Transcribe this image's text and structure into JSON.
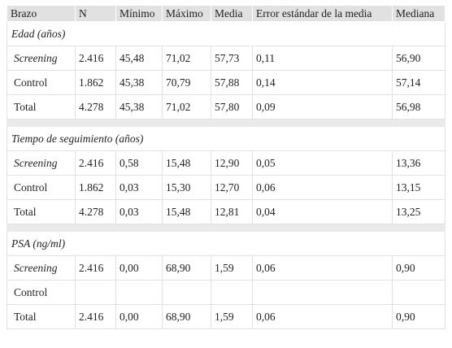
{
  "headers": [
    "Brazo",
    "N",
    "Mínimo",
    "Máximo",
    "Media",
    "Error estándar de la media",
    "Mediana"
  ],
  "sections": [
    {
      "title": "Edad (años)",
      "rows": [
        {
          "arm": "Screening",
          "italic": true,
          "cells": [
            "2.416",
            "45,48",
            "71,02",
            "57,73",
            "0,11",
            "56,90"
          ]
        },
        {
          "arm": "Control",
          "italic": false,
          "cells": [
            "1.862",
            "45,38",
            "70,79",
            "57,88",
            "0,14",
            "57,14"
          ]
        },
        {
          "arm": "Total",
          "italic": false,
          "cells": [
            "4.278",
            "45,38",
            "71,02",
            "57,80",
            "0,09",
            "56,98"
          ]
        }
      ]
    },
    {
      "title": "Tiempo de seguimiento (años)",
      "rows": [
        {
          "arm": "Screening",
          "italic": true,
          "cells": [
            "2.416",
            "0,58",
            "15,48",
            "12,90",
            "0,05",
            "13,36"
          ]
        },
        {
          "arm": "Control",
          "italic": false,
          "cells": [
            "1.862",
            "0,03",
            "15,30",
            "12,70",
            "0,06",
            "13,15"
          ]
        },
        {
          "arm": "Total",
          "italic": false,
          "cells": [
            "4.278",
            "0,03",
            "15,48",
            "12,81",
            "0,04",
            "13,25"
          ]
        }
      ]
    },
    {
      "title": "PSA (ng/ml)",
      "rows": [
        {
          "arm": "Screening",
          "italic": true,
          "cells": [
            "2.416",
            "0,00",
            "68,90",
            "1,59",
            "0,06",
            "0,90"
          ]
        },
        {
          "arm": "Control",
          "italic": false,
          "cells": [
            "",
            "",
            "",
            "",
            "",
            ""
          ]
        },
        {
          "arm": "Total",
          "italic": false,
          "cells": [
            "2.416",
            "0,00",
            "68,90",
            "1,59",
            "0,06",
            "0,90"
          ]
        }
      ]
    }
  ]
}
